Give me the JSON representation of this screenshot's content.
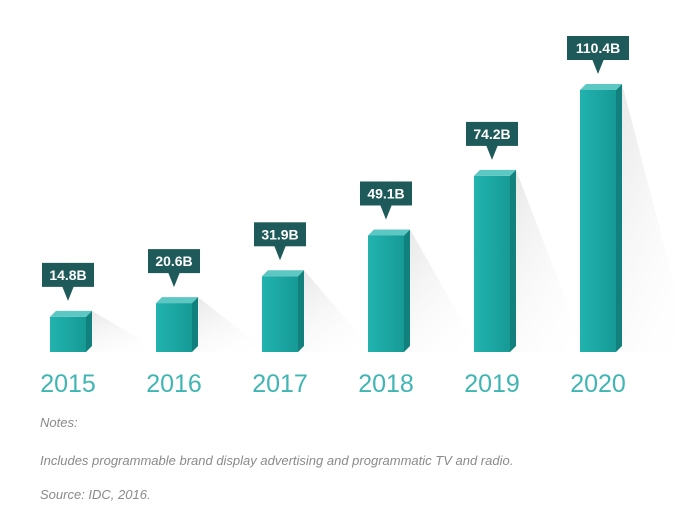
{
  "chart_data": {
    "type": "bar",
    "title": "",
    "xlabel": "",
    "ylabel": "",
    "categories": [
      "2015",
      "2016",
      "2017",
      "2018",
      "2019",
      "2020"
    ],
    "values": [
      14.8,
      20.6,
      31.9,
      49.1,
      74.2,
      110.4
    ],
    "value_labels": [
      "14.8B",
      "20.6B",
      "31.9B",
      "49.1B",
      "74.2B",
      "110.4B"
    ],
    "unit": "B",
    "ylim": [
      0,
      120
    ],
    "grid": false,
    "legend": "none",
    "colors": {
      "bar_front": "#1aa3a0",
      "bar_side": "#12807c",
      "bar_top": "#5cc7c3",
      "label_box": "#1e5a59",
      "label_text": "#ffffff",
      "axis_text": "#3fb6b3"
    }
  },
  "notes": {
    "heading": "Notes:",
    "line": "Includes programmable brand display advertising and programmatic TV and radio.",
    "source": "Source: IDC, 2016."
  }
}
